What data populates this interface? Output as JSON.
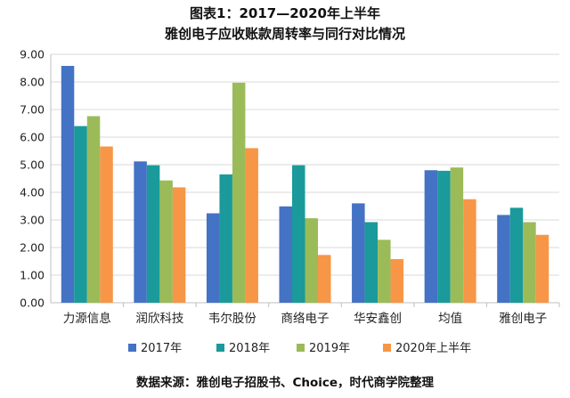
{
  "chart_data": {
    "type": "bar",
    "title": "图表1：2017—2020年上半年",
    "subtitle": "雅创电子应收账款周转率与同行对比情况",
    "categories": [
      "力源信息",
      "润欣科技",
      "韦尔股份",
      "商络电子",
      "华安鑫创",
      "均值",
      "雅创电子"
    ],
    "ylim": [
      0,
      9
    ],
    "yticks": [
      "0.00",
      "1.00",
      "2.00",
      "3.00",
      "4.00",
      "5.00",
      "6.00",
      "7.00",
      "8.00",
      "9.00"
    ],
    "grid": true,
    "legend_position": "bottom",
    "series": [
      {
        "name": "2017年",
        "color": "#4472c4",
        "values": [
          8.58,
          5.12,
          3.24,
          3.49,
          3.6,
          4.8,
          3.18
        ]
      },
      {
        "name": "2018年",
        "color": "#1a9a9a",
        "values": [
          6.4,
          4.98,
          4.65,
          4.98,
          2.92,
          4.78,
          3.44
        ]
      },
      {
        "name": "2019年",
        "color": "#9bbb59",
        "values": [
          6.76,
          4.43,
          7.97,
          3.06,
          2.28,
          4.9,
          2.92
        ]
      },
      {
        "name": "2020年上半年",
        "color": "#f79646",
        "values": [
          5.66,
          4.18,
          5.6,
          1.73,
          1.58,
          3.75,
          2.46
        ]
      }
    ]
  },
  "source": "数据来源：雅创电子招股书、Choice，时代商学院整理"
}
